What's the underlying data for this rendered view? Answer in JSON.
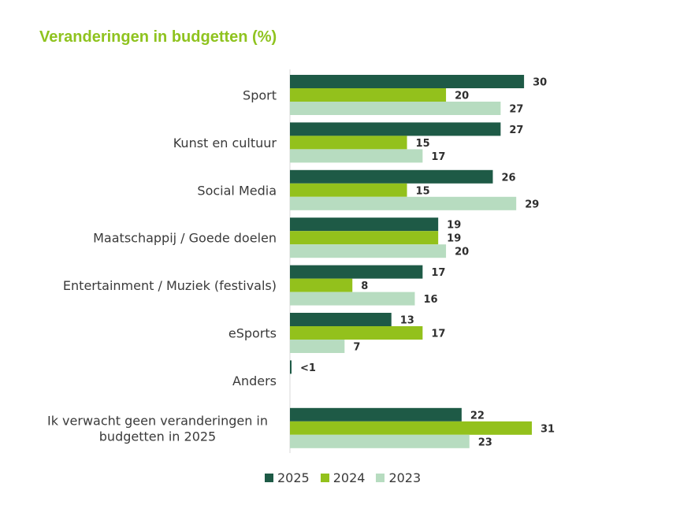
{
  "chart_data": {
    "type": "bar",
    "orientation": "horizontal",
    "title": "Veranderingen in budgetten (%)",
    "categories": [
      "Sport",
      "Kunst en cultuur",
      "Social Media",
      "Maatschappij / Goede doelen",
      "Entertainment  / Muziek (festivals)",
      "eSports",
      "Anders",
      "Ik verwacht geen veranderingen in budgetten in 2025"
    ],
    "category_label_lines": [
      [
        "Sport"
      ],
      [
        "Kunst en cultuur"
      ],
      [
        "Social Media"
      ],
      [
        "Maatschappij / Goede doelen"
      ],
      [
        "Entertainment  / Muziek (festivals)"
      ],
      [
        "eSports"
      ],
      [
        "Anders"
      ],
      [
        "Ik verwacht geen veranderingen in",
        "budgetten in 2025"
      ]
    ],
    "series": [
      {
        "name": "2025",
        "color": "#1e5a46",
        "values": [
          30,
          27,
          26,
          19,
          17,
          13,
          0.2,
          22
        ],
        "labels": [
          "30",
          "27",
          "26",
          "19",
          "17",
          "13",
          "<1",
          "22"
        ]
      },
      {
        "name": "2024",
        "color": "#93c11c",
        "values": [
          20,
          15,
          15,
          19,
          8,
          17,
          null,
          31
        ],
        "labels": [
          "20",
          "15",
          "15",
          "19",
          "8",
          "17",
          "",
          "31"
        ]
      },
      {
        "name": "2023",
        "color": "#b7dcc0",
        "values": [
          27,
          17,
          29,
          20,
          16,
          7,
          null,
          23
        ],
        "labels": [
          "27",
          "17",
          "29",
          "20",
          "16",
          "7",
          "",
          "23"
        ]
      }
    ],
    "xlim": [
      0,
      31
    ],
    "grid": false,
    "legend_position": "bottom"
  }
}
